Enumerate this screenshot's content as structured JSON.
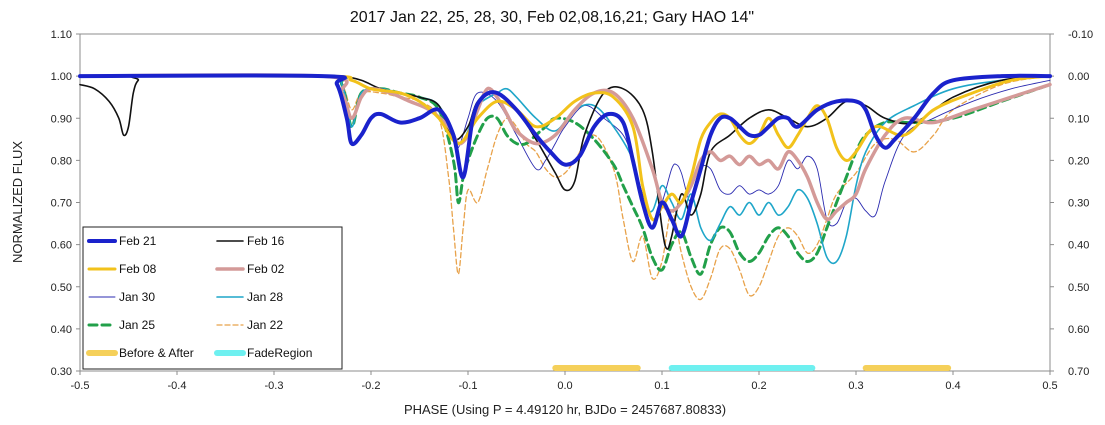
{
  "chart_data": {
    "type": "line",
    "title": "2017 Jan 22, 25, 28, 30, Feb 02,08,16,21; Gary HAO 14\"",
    "xlabel": "PHASE (Using P = 4.49120 hr, BJDo = 2457687.80833)",
    "ylabel": "NORMALIZED FLUX",
    "xlim": [
      -0.5,
      0.5
    ],
    "ylim": [
      0.3,
      1.1
    ],
    "y2lim": [
      0.7,
      -0.1
    ],
    "x_ticks": [
      -0.5,
      -0.4,
      -0.3,
      -0.2,
      -0.1,
      0.0,
      0.1,
      0.2,
      0.3,
      0.4,
      0.5
    ],
    "x_tick_labels": [
      "-0.5",
      "-0.4",
      "-0.3",
      "-0.2",
      "-0.1",
      "0.0",
      "0.1",
      "0.2",
      "0.3",
      "0.4",
      "0.5"
    ],
    "y_ticks": [
      0.3,
      0.4,
      0.5,
      0.6,
      0.7,
      0.8,
      0.9,
      1.0,
      1.1
    ],
    "y_tick_labels": [
      "0.30",
      "0.40",
      "0.50",
      "0.60",
      "0.70",
      "0.80",
      "0.90",
      "1.00",
      "1.10"
    ],
    "y2_tick_labels": [
      "0.70",
      "0.60",
      "0.50",
      "0.40",
      "0.30",
      "0.20",
      "0.10",
      "0.00",
      "-0.10"
    ],
    "grid": false,
    "legend_position": "bottom-left inside",
    "series": [
      {
        "name": "Feb 21",
        "color": "#1a22cc",
        "width": 4,
        "dash": "",
        "x": [
          -0.5,
          -0.25,
          -0.235,
          -0.225,
          -0.22,
          -0.21,
          -0.2,
          -0.19,
          -0.17,
          -0.15,
          -0.13,
          -0.115,
          -0.105,
          -0.095,
          -0.085,
          -0.07,
          -0.05,
          -0.03,
          -0.015,
          0.0,
          0.015,
          0.03,
          0.045,
          0.06,
          0.07,
          0.08,
          0.09,
          0.1,
          0.11,
          0.12,
          0.13,
          0.14,
          0.15,
          0.16,
          0.17,
          0.18,
          0.19,
          0.2,
          0.21,
          0.22,
          0.23,
          0.24,
          0.26,
          0.28,
          0.3,
          0.31,
          0.32,
          0.33,
          0.34,
          0.36,
          0.38,
          0.4,
          0.45,
          0.5
        ],
        "y": [
          1.0,
          1.0,
          0.98,
          0.9,
          0.84,
          0.86,
          0.9,
          0.91,
          0.89,
          0.9,
          0.92,
          0.86,
          0.76,
          0.9,
          0.95,
          0.96,
          0.92,
          0.86,
          0.82,
          0.79,
          0.81,
          0.88,
          0.91,
          0.89,
          0.8,
          0.7,
          0.64,
          0.7,
          0.66,
          0.62,
          0.7,
          0.78,
          0.86,
          0.9,
          0.9,
          0.88,
          0.86,
          0.86,
          0.88,
          0.9,
          0.9,
          0.88,
          0.92,
          0.94,
          0.94,
          0.92,
          0.86,
          0.83,
          0.85,
          0.9,
          0.96,
          0.99,
          1.0,
          1.0
        ]
      },
      {
        "name": "Feb 16",
        "color": "#111111",
        "width": 1.6,
        "dash": "",
        "x": [
          -0.5,
          -0.485,
          -0.47,
          -0.46,
          -0.455,
          -0.45,
          -0.445,
          -0.44,
          -0.43,
          -0.25,
          -0.23,
          -0.21,
          -0.19,
          -0.17,
          -0.15,
          -0.13,
          -0.115,
          -0.1,
          -0.09,
          -0.07,
          -0.05,
          -0.03,
          -0.01,
          0.0,
          0.01,
          0.02,
          0.04,
          0.06,
          0.08,
          0.09,
          0.1,
          0.105,
          0.11,
          0.12,
          0.13,
          0.14,
          0.15,
          0.17,
          0.19,
          0.21,
          0.23,
          0.25,
          0.27,
          0.29,
          0.31,
          0.33,
          0.36,
          0.4,
          0.45,
          0.5
        ],
        "y": [
          0.98,
          0.97,
          0.94,
          0.9,
          0.86,
          0.88,
          0.96,
          0.99,
          1.0,
          1.0,
          1.0,
          0.99,
          0.97,
          0.96,
          0.95,
          0.93,
          0.85,
          0.88,
          0.94,
          0.96,
          0.92,
          0.85,
          0.77,
          0.73,
          0.75,
          0.86,
          0.96,
          0.97,
          0.92,
          0.82,
          0.64,
          0.59,
          0.62,
          0.72,
          0.67,
          0.72,
          0.82,
          0.86,
          0.9,
          0.92,
          0.9,
          0.88,
          0.9,
          0.94,
          0.93,
          0.9,
          0.89,
          0.95,
          0.99,
          1.0
        ]
      },
      {
        "name": "Feb 08",
        "color": "#f2c21b",
        "width": 3,
        "dash": "",
        "x": [
          -0.5,
          -0.25,
          -0.22,
          -0.2,
          -0.17,
          -0.15,
          -0.13,
          -0.11,
          -0.09,
          -0.07,
          -0.05,
          -0.03,
          -0.01,
          0.01,
          0.03,
          0.05,
          0.07,
          0.08,
          0.09,
          0.1,
          0.11,
          0.12,
          0.13,
          0.14,
          0.15,
          0.16,
          0.17,
          0.18,
          0.19,
          0.2,
          0.21,
          0.22,
          0.23,
          0.24,
          0.25,
          0.26,
          0.27,
          0.28,
          0.29,
          0.3,
          0.32,
          0.35,
          0.38,
          0.42,
          0.46,
          0.5
        ],
        "y": [
          1.0,
          1.0,
          0.99,
          0.97,
          0.96,
          0.94,
          0.9,
          0.84,
          0.9,
          0.94,
          0.92,
          0.88,
          0.9,
          0.94,
          0.96,
          0.95,
          0.88,
          0.74,
          0.66,
          0.69,
          0.72,
          0.7,
          0.76,
          0.85,
          0.89,
          0.91,
          0.9,
          0.86,
          0.84,
          0.86,
          0.9,
          0.86,
          0.83,
          0.86,
          0.9,
          0.93,
          0.9,
          0.83,
          0.8,
          0.82,
          0.88,
          0.86,
          0.92,
          0.96,
          0.99,
          1.0
        ]
      },
      {
        "name": "Feb 02",
        "color": "#d49a98",
        "width": 3.5,
        "dash": "",
        "x": [
          -0.5,
          -0.25,
          -0.23,
          -0.22,
          -0.21,
          -0.2,
          -0.18,
          -0.16,
          -0.14,
          -0.12,
          -0.11,
          -0.1,
          -0.09,
          -0.08,
          -0.07,
          -0.06,
          -0.05,
          -0.03,
          -0.01,
          0.01,
          0.03,
          0.05,
          0.07,
          0.09,
          0.1,
          0.11,
          0.12,
          0.13,
          0.14,
          0.15,
          0.16,
          0.17,
          0.18,
          0.19,
          0.2,
          0.21,
          0.22,
          0.23,
          0.24,
          0.25,
          0.26,
          0.27,
          0.28,
          0.29,
          0.3,
          0.31,
          0.33,
          0.35,
          0.38,
          0.42,
          0.46,
          0.5
        ],
        "y": [
          1.0,
          1.0,
          0.96,
          0.9,
          0.95,
          0.97,
          0.96,
          0.94,
          0.92,
          0.88,
          0.84,
          0.86,
          0.92,
          0.97,
          0.95,
          0.91,
          0.87,
          0.84,
          0.86,
          0.92,
          0.96,
          0.96,
          0.9,
          0.78,
          0.7,
          0.68,
          0.7,
          0.74,
          0.8,
          0.82,
          0.8,
          0.81,
          0.79,
          0.81,
          0.79,
          0.8,
          0.78,
          0.82,
          0.8,
          0.76,
          0.7,
          0.66,
          0.68,
          0.7,
          0.72,
          0.78,
          0.86,
          0.9,
          0.89,
          0.92,
          0.95,
          0.98
        ]
      },
      {
        "name": "Jan 30",
        "color": "#2b2bb0",
        "width": 0.9,
        "dash": "",
        "x": [
          -0.5,
          -0.25,
          -0.23,
          -0.22,
          -0.21,
          -0.19,
          -0.17,
          -0.15,
          -0.13,
          -0.115,
          -0.11,
          -0.1,
          -0.09,
          -0.07,
          -0.05,
          -0.03,
          -0.02,
          -0.01,
          0.0,
          0.02,
          0.04,
          0.06,
          0.07,
          0.08,
          0.09,
          0.1,
          0.11,
          0.115,
          0.12,
          0.13,
          0.14,
          0.15,
          0.16,
          0.17,
          0.18,
          0.19,
          0.2,
          0.21,
          0.22,
          0.23,
          0.24,
          0.25,
          0.26,
          0.27,
          0.28,
          0.29,
          0.3,
          0.31,
          0.32,
          0.33,
          0.35,
          0.38,
          0.42,
          0.46,
          0.5
        ],
        "y": [
          1.0,
          1.0,
          0.98,
          0.9,
          0.96,
          0.97,
          0.96,
          0.95,
          0.93,
          0.87,
          0.83,
          0.9,
          0.96,
          0.94,
          0.86,
          0.78,
          0.8,
          0.84,
          0.88,
          0.93,
          0.9,
          0.86,
          0.8,
          0.72,
          0.66,
          0.7,
          0.78,
          0.79,
          0.77,
          0.7,
          0.78,
          0.78,
          0.73,
          0.72,
          0.74,
          0.72,
          0.73,
          0.72,
          0.74,
          0.8,
          0.78,
          0.81,
          0.78,
          0.66,
          0.65,
          0.7,
          0.71,
          0.68,
          0.67,
          0.75,
          0.86,
          0.9,
          0.94,
          0.97,
          0.99
        ]
      },
      {
        "name": "Jan 28",
        "color": "#1fa6c9",
        "width": 1.6,
        "dash": "",
        "x": [
          -0.5,
          -0.25,
          -0.23,
          -0.22,
          -0.21,
          -0.19,
          -0.17,
          -0.15,
          -0.13,
          -0.11,
          -0.1,
          -0.09,
          -0.07,
          -0.06,
          -0.05,
          -0.03,
          -0.01,
          0.01,
          0.03,
          0.05,
          0.07,
          0.08,
          0.09,
          0.1,
          0.11,
          0.12,
          0.13,
          0.14,
          0.15,
          0.16,
          0.17,
          0.18,
          0.19,
          0.2,
          0.21,
          0.22,
          0.23,
          0.24,
          0.25,
          0.26,
          0.27,
          0.28,
          0.29,
          0.3,
          0.31,
          0.33,
          0.36,
          0.4,
          0.45,
          0.5
        ],
        "y": [
          1.0,
          1.0,
          0.98,
          0.88,
          0.96,
          0.97,
          0.96,
          0.95,
          0.93,
          0.84,
          0.87,
          0.93,
          0.96,
          0.97,
          0.95,
          0.9,
          0.87,
          0.92,
          0.93,
          0.88,
          0.8,
          0.7,
          0.68,
          0.74,
          0.7,
          0.66,
          0.72,
          0.64,
          0.61,
          0.65,
          0.69,
          0.67,
          0.7,
          0.67,
          0.7,
          0.67,
          0.69,
          0.73,
          0.71,
          0.65,
          0.57,
          0.56,
          0.62,
          0.74,
          0.82,
          0.89,
          0.93,
          0.97,
          0.99,
          1.0
        ]
      },
      {
        "name": "Jan 25",
        "color": "#22a04a",
        "width": 3,
        "dash": "8,5",
        "x": [
          -0.5,
          -0.25,
          -0.23,
          -0.22,
          -0.21,
          -0.19,
          -0.17,
          -0.15,
          -0.13,
          -0.115,
          -0.11,
          -0.105,
          -0.1,
          -0.09,
          -0.08,
          -0.07,
          -0.06,
          -0.05,
          -0.04,
          -0.03,
          -0.02,
          -0.01,
          0.01,
          0.03,
          0.05,
          0.06,
          0.07,
          0.08,
          0.09,
          0.1,
          0.11,
          0.12,
          0.13,
          0.14,
          0.15,
          0.16,
          0.17,
          0.18,
          0.19,
          0.2,
          0.21,
          0.22,
          0.23,
          0.24,
          0.25,
          0.26,
          0.27,
          0.28,
          0.29,
          0.3,
          0.31,
          0.33,
          0.36,
          0.4,
          0.45,
          0.5
        ],
        "y": [
          1.0,
          1.0,
          0.98,
          0.88,
          0.96,
          0.97,
          0.96,
          0.95,
          0.92,
          0.8,
          0.7,
          0.76,
          0.8,
          0.86,
          0.9,
          0.9,
          0.86,
          0.84,
          0.84,
          0.86,
          0.88,
          0.9,
          0.89,
          0.85,
          0.79,
          0.74,
          0.69,
          0.64,
          0.57,
          0.54,
          0.6,
          0.63,
          0.57,
          0.53,
          0.6,
          0.64,
          0.63,
          0.58,
          0.56,
          0.58,
          0.62,
          0.64,
          0.62,
          0.58,
          0.56,
          0.58,
          0.64,
          0.7,
          0.76,
          0.82,
          0.86,
          0.89,
          0.89,
          0.9,
          0.94,
          0.98
        ]
      },
      {
        "name": "Jan 22",
        "color": "#e8a24a",
        "width": 1.3,
        "dash": "5,3",
        "x": [
          -0.5,
          -0.25,
          -0.23,
          -0.22,
          -0.21,
          -0.19,
          -0.17,
          -0.15,
          -0.13,
          -0.12,
          -0.115,
          -0.11,
          -0.105,
          -0.1,
          -0.09,
          -0.08,
          -0.07,
          -0.06,
          -0.05,
          -0.04,
          -0.03,
          -0.02,
          -0.01,
          0.0,
          0.01,
          0.03,
          0.05,
          0.06,
          0.07,
          0.08,
          0.09,
          0.1,
          0.11,
          0.12,
          0.13,
          0.14,
          0.15,
          0.16,
          0.17,
          0.18,
          0.19,
          0.2,
          0.21,
          0.22,
          0.23,
          0.24,
          0.25,
          0.26,
          0.27,
          0.28,
          0.3,
          0.32,
          0.34,
          0.36,
          0.38,
          0.4,
          0.45,
          0.5
        ],
        "y": [
          1.0,
          1.0,
          0.98,
          0.92,
          0.96,
          0.96,
          0.95,
          0.94,
          0.9,
          0.76,
          0.64,
          0.53,
          0.64,
          0.73,
          0.7,
          0.78,
          0.86,
          0.9,
          0.88,
          0.84,
          0.82,
          0.78,
          0.76,
          0.77,
          0.8,
          0.86,
          0.78,
          0.66,
          0.56,
          0.62,
          0.52,
          0.56,
          0.68,
          0.58,
          0.5,
          0.47,
          0.52,
          0.59,
          0.59,
          0.54,
          0.48,
          0.5,
          0.56,
          0.62,
          0.64,
          0.62,
          0.58,
          0.6,
          0.66,
          0.72,
          0.77,
          0.84,
          0.85,
          0.82,
          0.86,
          0.92,
          0.98,
          1.0
        ]
      }
    ],
    "markers": [
      {
        "name": "Before & After",
        "color": "#f5d05a",
        "width": 6,
        "ranges": [
          [
            -0.01,
            0.075
          ],
          [
            0.31,
            0.395
          ]
        ],
        "y": 0.3
      },
      {
        "name": "FadeRegion",
        "color": "#6ef0f0",
        "width": 6,
        "ranges": [
          [
            0.11,
            0.255
          ]
        ],
        "y": 0.3
      }
    ],
    "legend_order": [
      "Feb 21",
      "Feb 16",
      "Feb 08",
      "Feb 02",
      "Jan 30",
      "Jan 28",
      "Jan 25",
      "Jan 22",
      "Before & After",
      "FadeRegion"
    ]
  }
}
